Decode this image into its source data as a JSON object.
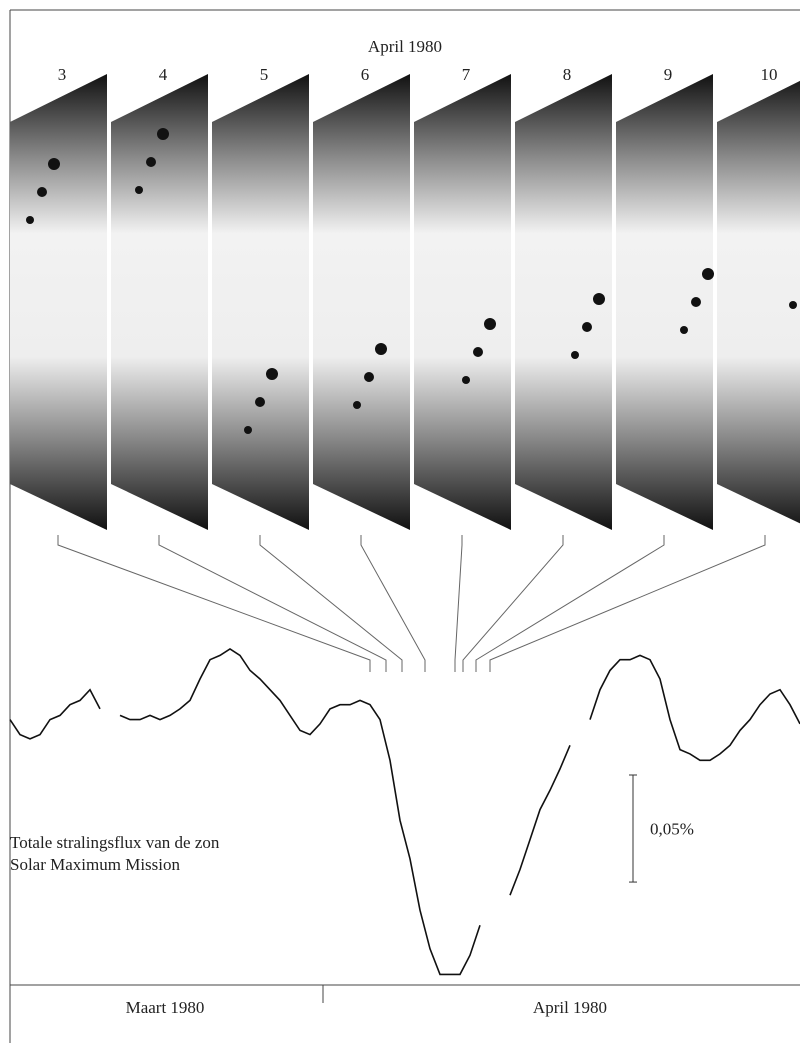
{
  "chart_data": {
    "type": "line",
    "title": "April 1980",
    "panel_labels": [
      "3",
      "4",
      "5",
      "6",
      "7",
      "8",
      "9",
      "10"
    ],
    "annotations": [
      "Totale stralingsflux van de zon",
      "Solar Maximum Mission"
    ],
    "month_labels": [
      "Maart 1980",
      "April 1980"
    ],
    "scale_bar": {
      "value": 0.05,
      "label": "0,05%"
    },
    "color": "#111111",
    "ylim": [
      -0.13,
      0.04
    ],
    "values": [
      0,
      -0.007,
      -0.009,
      -0.007,
      0,
      0.002,
      0.007,
      0.009,
      0.014,
      0.005,
      null,
      0.002,
      0,
      0,
      0.002,
      0,
      0.002,
      0.005,
      0.009,
      0.019,
      0.028,
      0.03,
      0.033,
      0.03,
      0.023,
      0.019,
      0.014,
      0.009,
      0.002,
      -0.005,
      -0.007,
      -0.002,
      0.005,
      0.007,
      0.007,
      0.009,
      0.007,
      0,
      -0.019,
      -0.047,
      -0.065,
      -0.089,
      -0.107,
      -0.119,
      -0.119,
      -0.119,
      -0.11,
      -0.096,
      null,
      null,
      -0.082,
      -0.07,
      -0.056,
      -0.042,
      -0.033,
      -0.023,
      -0.012,
      null,
      0,
      0.014,
      0.023,
      0.028,
      0.028,
      0.03,
      0.028,
      0.019,
      0,
      -0.014,
      -0.016,
      -0.019,
      -0.019,
      -0.016,
      -0.012,
      -0.005,
      0,
      0.007,
      0.012,
      0.014,
      0.007,
      -0.002
    ]
  }
}
